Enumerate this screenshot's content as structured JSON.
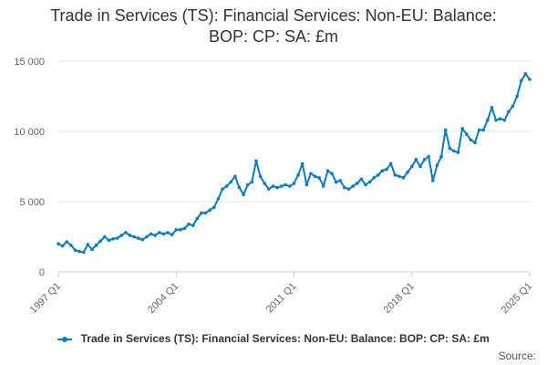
{
  "chart_data": {
    "type": "line",
    "title_lines": [
      "Trade in Services (TS): Financial Services: Non-EU: Balance:",
      "BOP: CP: SA: £m"
    ],
    "xlabel": "",
    "ylabel": "",
    "ylim": [
      0,
      15000
    ],
    "y_ticks": [
      0,
      5000,
      10000,
      15000
    ],
    "y_tick_labels": [
      "0",
      "5 000",
      "10 000",
      "15 000"
    ],
    "x_tick_labels": [
      "1997 Q1",
      "2004 Q1",
      "2011 Q1",
      "2018 Q1",
      "2025 Q1"
    ],
    "x_tick_indices": [
      0,
      28,
      56,
      84,
      112
    ],
    "grid": true,
    "legend_position": "bottom",
    "series": [
      {
        "name": "Trade in Services (TS): Financial Services: Non-EU: Balance: BOP: CP: SA: £m",
        "color": "#0a7cc1",
        "values": [
          2000,
          1850,
          2150,
          1900,
          1550,
          1450,
          1400,
          1950,
          1600,
          1900,
          2200,
          2500,
          2250,
          2350,
          2400,
          2600,
          2800,
          2600,
          2500,
          2400,
          2300,
          2500,
          2700,
          2600,
          2800,
          2700,
          2800,
          2650,
          3000,
          3000,
          3100,
          3400,
          3300,
          3800,
          4200,
          4200,
          4400,
          4600,
          5200,
          5900,
          6100,
          6400,
          6800,
          6000,
          5500,
          6200,
          6400,
          7900,
          6800,
          6300,
          5900,
          6100,
          6000,
          6100,
          6200,
          6100,
          6300,
          6900,
          7700,
          6200,
          7000,
          6800,
          6700,
          6100,
          7200,
          7000,
          6400,
          6500,
          6000,
          5900,
          6100,
          6300,
          6600,
          6200,
          6400,
          6700,
          6900,
          7200,
          7300,
          7700,
          6900,
          6800,
          6700,
          7100,
          7500,
          8000,
          7500,
          8000,
          8200,
          6500,
          7600,
          8200,
          10100,
          8800,
          8600,
          8500,
          10200,
          9800,
          9400,
          9200,
          10100,
          10100,
          10800,
          11700,
          10800,
          10900,
          10800,
          11400,
          11800,
          12500,
          13600,
          14100,
          13700
        ]
      }
    ],
    "source_label": "Source:"
  }
}
